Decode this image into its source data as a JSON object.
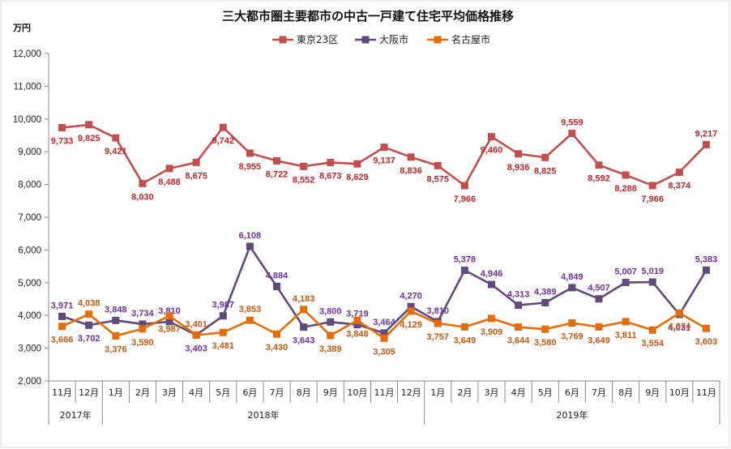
{
  "chart_data": {
    "type": "line",
    "title": "三大都市圏主要都市の中古一戸建て住宅平均価格推移",
    "ylabel": "万円",
    "ylim": [
      2000,
      12000
    ],
    "yticks": [
      "2,000",
      "3,000",
      "4,000",
      "5,000",
      "6,000",
      "7,000",
      "8,000",
      "9,000",
      "10,000",
      "11,000",
      "12,000"
    ],
    "ytick_values": [
      2000,
      3000,
      4000,
      5000,
      6000,
      7000,
      8000,
      9000,
      10000,
      11000,
      12000
    ],
    "categories": [
      "11月",
      "12月",
      "1月",
      "2月",
      "3月",
      "4月",
      "5月",
      "6月",
      "7月",
      "8月",
      "9月",
      "10月",
      "11月",
      "12月",
      "1月",
      "2月",
      "3月",
      "4月",
      "5月",
      "6月",
      "7月",
      "8月",
      "9月",
      "10月",
      "11月"
    ],
    "years": [
      {
        "label": "2017年",
        "start": 0,
        "end": 1
      },
      {
        "label": "2018年",
        "start": 2,
        "end": 13
      },
      {
        "label": "2019年",
        "start": 14,
        "end": 24
      }
    ],
    "series": [
      {
        "name": "東京23区",
        "color": "#c0504d",
        "label_color": "#c0272d",
        "values": [
          9733,
          9825,
          9421,
          8030,
          8488,
          8675,
          9742,
          8955,
          8722,
          8552,
          8673,
          8629,
          9137,
          8836,
          8575,
          7966,
          9460,
          8936,
          8825,
          9559,
          8592,
          8288,
          7966,
          8374,
          9217
        ],
        "labels": [
          "9,733",
          "9,825",
          "9,421",
          "8,030",
          "8,488",
          "8,675",
          "9,742",
          "8,955",
          "8,722",
          "8,552",
          "8,673",
          "8,629",
          "9,137",
          "8,836",
          "8,575",
          "7,966",
          "9,460",
          "8,936",
          "8,825",
          "9,559",
          "8,592",
          "8,288",
          "7,966",
          "8,374",
          "9,217"
        ]
      },
      {
        "name": "大阪市",
        "color": "#604a7b",
        "label_color": "#7030a0",
        "values": [
          3971,
          3702,
          3848,
          3734,
          3810,
          3403,
          3987,
          6108,
          4884,
          3643,
          3800,
          3719,
          3464,
          4270,
          3810,
          5378,
          4946,
          4313,
          4389,
          4849,
          4507,
          5007,
          5019,
          4031,
          5383
        ],
        "labels": [
          "3,971",
          "3,702",
          "3,848",
          "3,734",
          "3,810",
          "3,403",
          "3,987",
          "6,108",
          "4,884",
          "3,643",
          "3,800",
          "3,719",
          "3,464",
          "4,270",
          "3,810",
          "5,378",
          "4,946",
          "4,313",
          "4,389",
          "4,849",
          "4,507",
          "5,007",
          "5,019",
          "4,031",
          "5,383"
        ]
      },
      {
        "name": "名古屋市",
        "color": "#e46c0a",
        "label_color": "#c55a11",
        "values": [
          3666,
          4038,
          3376,
          3590,
          3987,
          3401,
          3481,
          3853,
          3430,
          4183,
          3389,
          3848,
          3305,
          4129,
          3757,
          3649,
          3909,
          3644,
          3580,
          3769,
          3649,
          3811,
          3554,
          4074,
          3603
        ],
        "labels": [
          "3,666",
          "4,038",
          "3,376",
          "3,590",
          "3,987",
          "3,401",
          "3,481",
          "3,853",
          "3,430",
          "4,183",
          "3,389",
          "3,848",
          "3,305",
          "4,129",
          "3,757",
          "3,649",
          "3,909",
          "3,644",
          "3,580",
          "3,769",
          "3,649",
          "3,811",
          "3,554",
          "4,074",
          "3,603"
        ]
      }
    ]
  }
}
